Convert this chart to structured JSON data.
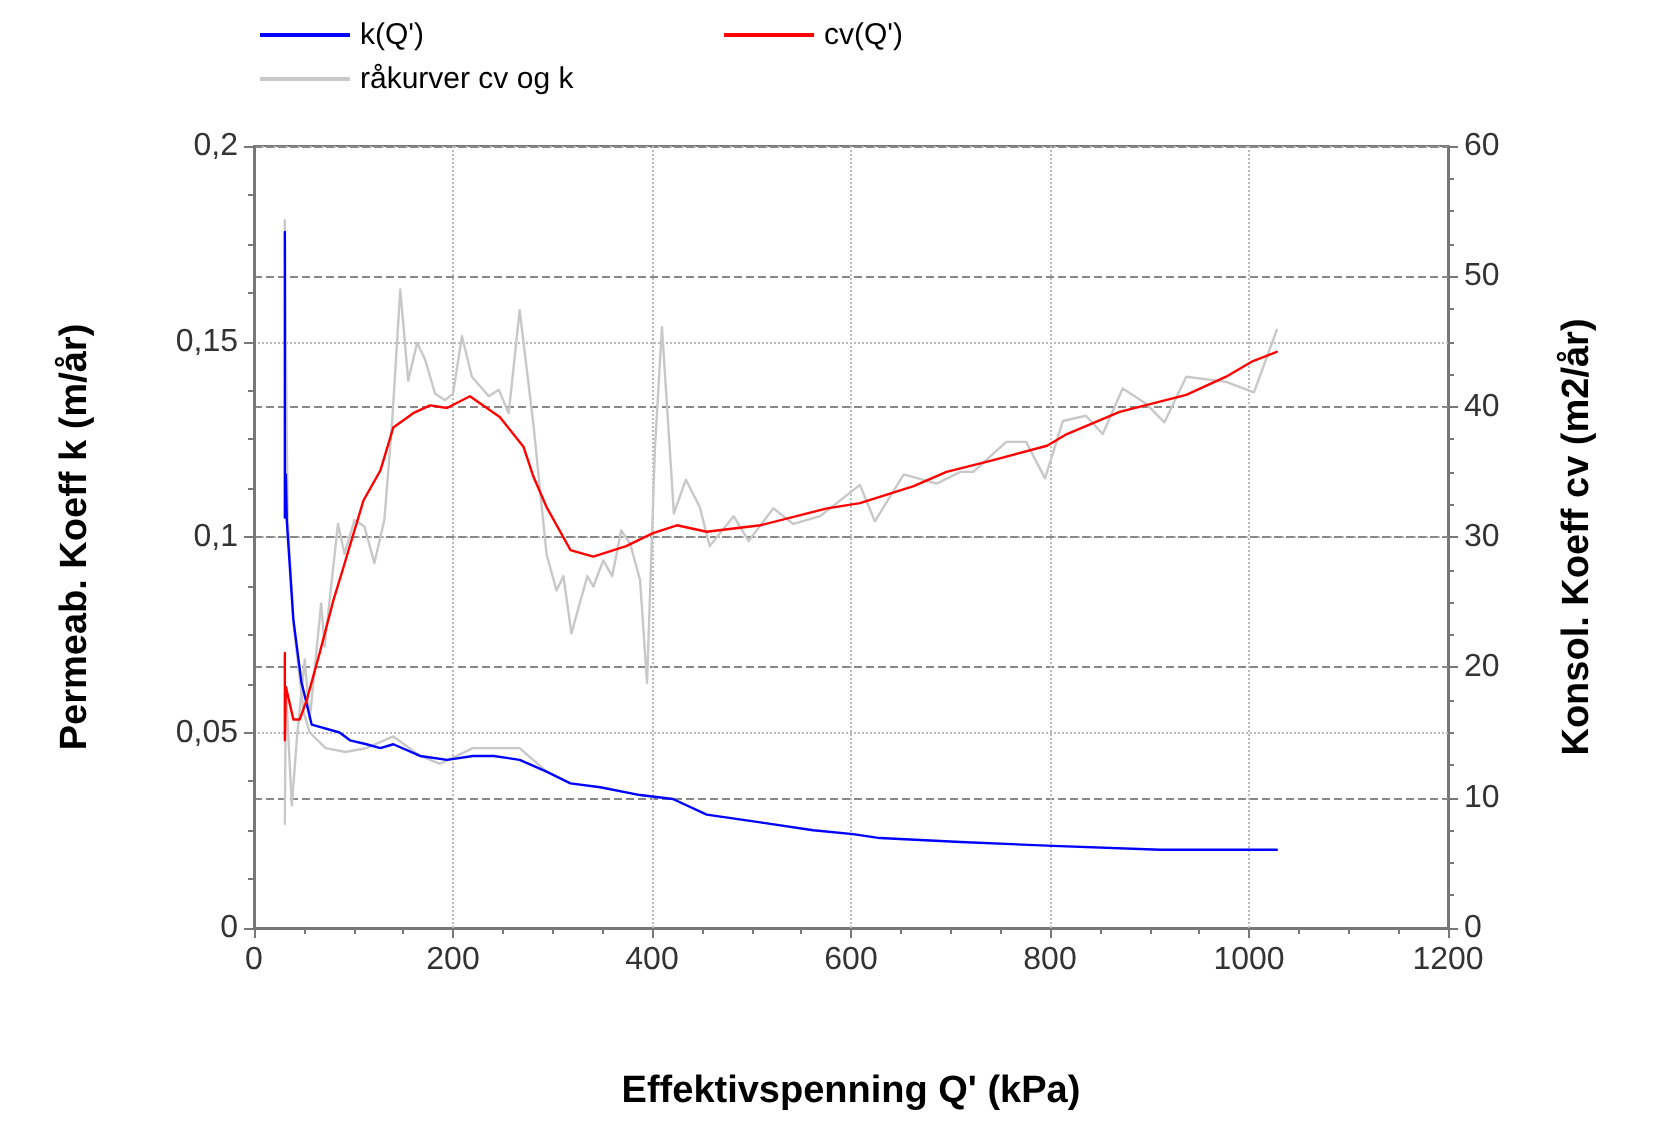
{
  "chart_data": {
    "type": "line",
    "xlabel": "Effektivspenning Q' (kPa)",
    "ylabel": "Permeab. Koeff k (m/år)",
    "y2label": "Konsol. Koeff cv (m2/år)",
    "xlim": [
      0,
      1200
    ],
    "xticks": [
      0,
      200,
      400,
      600,
      800,
      1000,
      1200
    ],
    "ylim": [
      0,
      0.2
    ],
    "yticks": [
      0,
      {
        "value": 0.05,
        "label": "0,05"
      },
      {
        "value": 0.1,
        "label": "0,1"
      },
      {
        "value": 0.15,
        "label": "0,15"
      },
      {
        "value": 0.2,
        "label": "0,2"
      }
    ],
    "y2lim": [
      0,
      60
    ],
    "y2ticks": [
      0,
      10,
      20,
      30,
      40,
      50,
      60
    ],
    "grid": true,
    "legend": "top left",
    "marker": "none",
    "line_style": "solid",
    "series": [
      {
        "name": "k(Q')",
        "color": "#0000ff",
        "axis": "y",
        "x": [
          31,
          31,
          32,
          33,
          39.5,
          47.6,
          58,
          86,
          96.5,
          113,
          127,
          140,
          167,
          194,
          220,
          241,
          267,
          294,
          318,
          348,
          388,
          421,
          455,
          509,
          562,
          602,
          629,
          710,
          803,
          911,
          1004,
          1028
        ],
        "values": [
          0.178,
          0.105,
          0.116,
          0.104,
          0.079,
          0.063,
          0.052,
          0.05,
          0.048,
          0.047,
          0.046,
          0.047,
          0.044,
          0.043,
          0.044,
          0.044,
          0.043,
          0.04,
          0.037,
          0.036,
          0.034,
          0.033,
          0.029,
          0.027,
          0.025,
          0.024,
          0.023,
          0.022,
          0.021,
          0.02,
          0.02,
          0.02
        ]
      },
      {
        "name": "cv(Q')",
        "color": "#ff0000",
        "axis": "y2",
        "x": [
          31,
          31,
          32,
          39.6,
          46,
          53,
          66,
          80,
          90,
          110,
          127,
          140,
          160,
          177,
          194,
          217,
          247,
          271,
          281,
          294,
          318,
          341,
          374,
          401,
          425,
          455,
          509,
          576,
          609,
          663,
          696,
          743,
          797,
          817,
          870,
          937,
          977,
          1004,
          1028
        ],
        "values": [
          21.1,
          14.4,
          18.5,
          16,
          16,
          17.5,
          21.1,
          25.2,
          27.7,
          32.8,
          35.1,
          38.4,
          39.5,
          40.1,
          39.9,
          40.8,
          39.2,
          36.9,
          34.6,
          32.3,
          29,
          28.5,
          29.3,
          30.3,
          30.9,
          30.4,
          30.9,
          32.2,
          32.6,
          33.9,
          35,
          35.9,
          37,
          37.9,
          39.6,
          40.9,
          42.3,
          43.5,
          44.2
        ]
      },
      {
        "name": "råkurver cv og k",
        "color": "#c8c8c8",
        "axis": "y2",
        "x": [
          31,
          32,
          38,
          43.5,
          51,
          56,
          67.5,
          71,
          84.4,
          91,
          101,
          111,
          121,
          131,
          139,
          147,
          155,
          164,
          172,
          182,
          192,
          200,
          209,
          219,
          236,
          246,
          256,
          267,
          281,
          294,
          304,
          311,
          319,
          335,
          341,
          351,
          360,
          369,
          378,
          388,
          395,
          403,
          410,
          422,
          434,
          448,
          458,
          482,
          497,
          522,
          542,
          569,
          609,
          624,
          653,
          686,
          710,
          723,
          756,
          776,
          795,
          813,
          836,
          853,
          873,
          897,
          915,
          937,
          977,
          1005,
          1028
        ],
        "values": [
          8,
          18.5,
          9.4,
          14.9,
          20.6,
          16,
          24.9,
          21.6,
          31,
          28.7,
          31.3,
          30.8,
          28,
          31.3,
          39,
          49,
          42,
          44.9,
          43.6,
          41,
          40.5,
          41,
          45.4,
          42.3,
          40.8,
          41.3,
          39.5,
          47.4,
          38.5,
          28.7,
          25.9,
          27,
          22.6,
          27,
          26.2,
          28.2,
          27,
          30.5,
          29.5,
          26.7,
          18.8,
          36.9,
          46.1,
          31.8,
          34.4,
          32.3,
          29.3,
          31.6,
          29.7,
          32.2,
          31,
          31.6,
          34,
          31.2,
          34.8,
          34.1,
          35,
          35,
          37.3,
          37.3,
          34.5,
          38.9,
          39.3,
          37.9,
          41.4,
          40.2,
          38.8,
          42.3,
          41.9,
          41.1,
          45.9
        ]
      },
      {
        "color": "#c8c8c8",
        "axis": "y",
        "x": [
          31,
          33,
          34,
          40,
          50,
          56,
          72,
          92,
          113,
          140,
          167,
          187,
          220,
          267,
          294
        ],
        "values": [
          0.181,
          0.123,
          0.104,
          0.077,
          0.055,
          0.05,
          0.046,
          0.045,
          0.046,
          0.049,
          0.044,
          0.042,
          0.046,
          0.046,
          0.04
        ]
      }
    ]
  }
}
